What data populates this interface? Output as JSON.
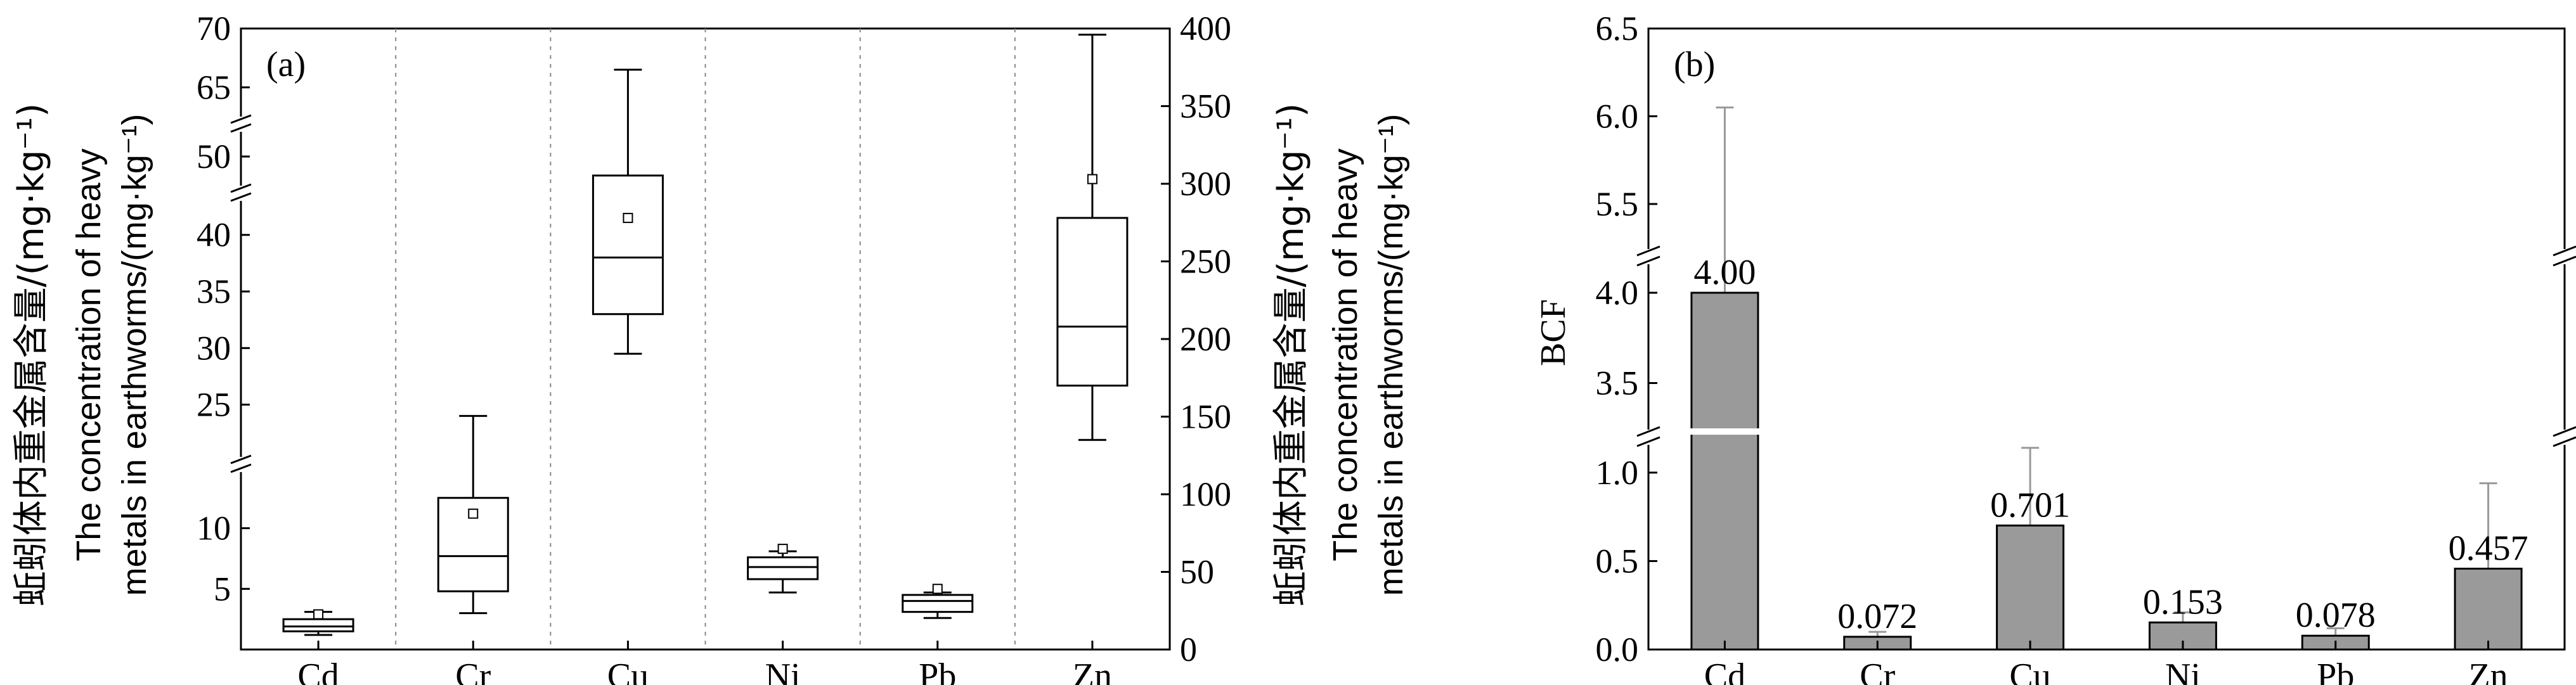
{
  "colors": {
    "bar_fill": "#9a9a9a",
    "axis": "#000000",
    "separator": "#888888",
    "error_bar": "#999999"
  },
  "chart_data": [
    {
      "type": "box",
      "panel_label": "(a)",
      "categories": [
        "Cd",
        "Cr",
        "Cu",
        "Ni",
        "Pb",
        "Zn"
      ],
      "ylabel_cn": "蚯蚓体内重金属含量/(mg·kg⁻¹)",
      "ylabel_en_line1": "The concentration of heavy",
      "ylabel_en_line2": "metals in earthworms/(mg·kg⁻¹)",
      "ylabel_right_cn": "蚯蚓体内重金属含量/(mg·kg⁻¹)",
      "ylabel_right_en_line1": "The concentration of heavy",
      "ylabel_right_en_line2": "metals in earthworms/(mg·kg⁻¹)",
      "left_axis_ticks": [
        "5",
        "10",
        "25",
        "30",
        "35",
        "40",
        "50",
        "65",
        "70"
      ],
      "right_axis_ticks": [
        "0",
        "50",
        "100",
        "150",
        "200",
        "250",
        "300",
        "350",
        "400"
      ],
      "right_axis_range": [
        0,
        400
      ],
      "left_axis_broken": true,
      "boxes": [
        {
          "category": "Cd",
          "axis": "left",
          "whisker_low": 1.2,
          "q1": 1.5,
          "median": 1.9,
          "q3": 2.5,
          "whisker_high": 3.1,
          "mean": 2.9
        },
        {
          "category": "Cr",
          "axis": "left",
          "whisker_low": 3.0,
          "q1": 4.8,
          "median": 7.7,
          "q3": 12.5,
          "whisker_high": 24.0,
          "mean": 11.2
        },
        {
          "category": "Cu",
          "axis": "left",
          "whisker_low": 29.5,
          "q1": 33.0,
          "median": 38.0,
          "q3": 48.0,
          "whisker_high": 66.5,
          "mean": 41.5
        },
        {
          "category": "Ni",
          "axis": "left",
          "whisker_low": 4.7,
          "q1": 5.8,
          "median": 6.8,
          "q3": 7.6,
          "whisker_high": 8.1,
          "mean": 8.3
        },
        {
          "category": "Pb",
          "axis": "left",
          "whisker_low": 2.6,
          "q1": 3.1,
          "median": 4.0,
          "q3": 4.5,
          "whisker_high": 4.7,
          "mean": 5.0
        },
        {
          "category": "Zn",
          "axis": "right",
          "whisker_low": 135,
          "q1": 170,
          "median": 208,
          "q3": 278,
          "whisker_high": 396,
          "mean": 303
        }
      ]
    },
    {
      "type": "bar",
      "panel_label": "(b)",
      "categories": [
        "Cd",
        "Cr",
        "Cu",
        "Ni",
        "Pb",
        "Zn"
      ],
      "values": [
        4.0,
        0.072,
        0.701,
        0.153,
        0.078,
        0.457
      ],
      "value_labels": [
        "4.00",
        "0.072",
        "0.701",
        "0.153",
        "0.078",
        "0.457"
      ],
      "error_upper": [
        6.05,
        0.1,
        1.14,
        0.21,
        0.12,
        0.94
      ],
      "ylabel": "BCF",
      "y_ticks": [
        "0.0",
        "0.5",
        "1.0",
        "3.5",
        "4.0",
        "5.5",
        "6.0",
        "6.5"
      ],
      "y_segments": [
        [
          0,
          1.2
        ],
        [
          3.2,
          4.2
        ],
        [
          5.2,
          6.5
        ]
      ],
      "ylim": [
        0,
        6.5
      ]
    }
  ]
}
